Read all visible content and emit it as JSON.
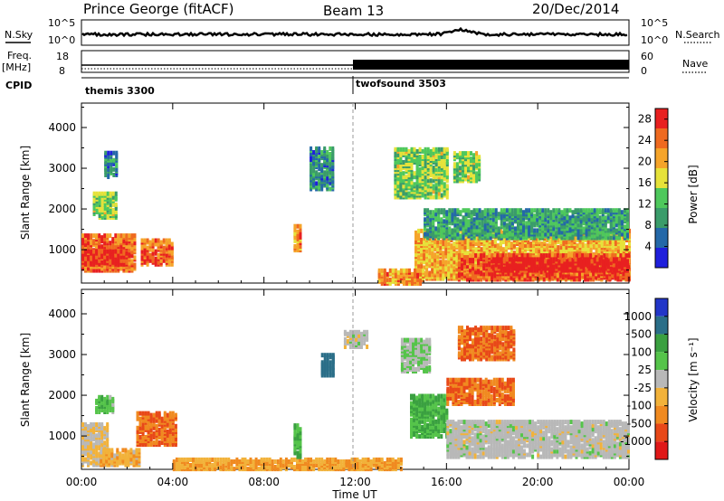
{
  "header": {
    "station": "Prince George (fitACF)",
    "beam": "Beam 13",
    "date": "20/Dec/2014"
  },
  "strips": {
    "nsky_label": "N.Sky",
    "nsky_ticks": [
      "10^5",
      "10^0"
    ],
    "nsearch_label": "N.Search",
    "nsearch_ticks": [
      "10^5",
      "10^0"
    ],
    "freq_label": "Freq.",
    "freq_unit": "[MHz]",
    "freq_ticks": [
      "18",
      "8"
    ],
    "nave_label": "Nave",
    "nave_ticks": [
      "60",
      "0"
    ],
    "cpid_label": "CPID",
    "cpid_segments": [
      {
        "name": "themis 3300",
        "start_hour": 0,
        "end_hour": 12
      },
      {
        "name": "twofsound 3503",
        "start_hour": 12,
        "end_hour": 24
      }
    ]
  },
  "time_axis": {
    "label": "Time UT",
    "ticks": [
      "00:00",
      "04:00",
      "08:00",
      "12:00",
      "16:00",
      "20:00",
      "00:00"
    ],
    "tick_hours": [
      0,
      4,
      8,
      12,
      16,
      20,
      24
    ],
    "range_hours": [
      0,
      24
    ]
  },
  "range_axis": {
    "label": "Slant Range [km]",
    "ticks": [
      "1000",
      "2000",
      "3000",
      "4000"
    ],
    "tick_values": [
      1000,
      2000,
      3000,
      4000
    ],
    "range_km": [
      180,
      4600
    ]
  },
  "colorbars": {
    "power": {
      "label": "Power [dB]",
      "tick_labels": [
        "4",
        "8",
        "12",
        "16",
        "20",
        "24",
        "28"
      ],
      "range": [
        0,
        30
      ],
      "colors": [
        "#1f1fdc",
        "#2468a8",
        "#3a9c6a",
        "#4ec85c",
        "#e6e23a",
        "#f5a42a",
        "#ef6a20",
        "#e82020"
      ]
    },
    "velocity": {
      "label": "Velocity [m s⁻¹]",
      "tick_labels": [
        "1000",
        "500",
        "100",
        "25",
        "-25",
        "-100",
        "-500",
        "-1000"
      ],
      "colors": [
        "#2236c8",
        "#2a6e88",
        "#3aa040",
        "#55c44a",
        "#b8b8b8",
        "#f2b23a",
        "#f08a20",
        "#e84818",
        "#e01818"
      ]
    }
  },
  "chart_data": {
    "type": "heatmap",
    "title": "Prince George (fitACF) Beam 13 20/Dec/2014",
    "xlabel": "Time UT",
    "ylabel": "Slant Range [km]",
    "xlim_hours": [
      0,
      24
    ],
    "ylim_km": [
      180,
      4600
    ],
    "panels": [
      {
        "name": "Power [dB]",
        "regions": [
          {
            "t0": 0.0,
            "t1": 2.4,
            "r0": 500,
            "r1": 1400,
            "value": 24
          },
          {
            "t0": 0.0,
            "t1": 2.0,
            "r0": 650,
            "r1": 1000,
            "value": 28
          },
          {
            "t0": 2.6,
            "t1": 4.0,
            "r0": 650,
            "r1": 1250,
            "value": 24
          },
          {
            "t0": 0.5,
            "t1": 1.5,
            "r0": 1800,
            "r1": 2400,
            "value": 14
          },
          {
            "t0": 1.0,
            "t1": 1.6,
            "r0": 2800,
            "r1": 3400,
            "value": 8
          },
          {
            "t0": 9.3,
            "t1": 9.6,
            "r0": 1000,
            "r1": 1600,
            "value": 22
          },
          {
            "t0": 10.0,
            "t1": 11.0,
            "r0": 2500,
            "r1": 3500,
            "value": 8
          },
          {
            "t0": 14.6,
            "t1": 24.0,
            "r0": 300,
            "r1": 1500,
            "value": 20
          },
          {
            "t0": 16.5,
            "t1": 24.0,
            "r0": 280,
            "r1": 900,
            "value": 26
          },
          {
            "t0": 18.0,
            "t1": 24.0,
            "r0": 500,
            "r1": 800,
            "value": 30
          },
          {
            "t0": 15.0,
            "t1": 24.0,
            "r0": 1300,
            "r1": 2000,
            "value": 10
          },
          {
            "t0": 13.0,
            "t1": 15.0,
            "r0": 180,
            "r1": 500,
            "value": 22
          },
          {
            "t0": 13.7,
            "t1": 16.0,
            "r0": 2300,
            "r1": 3500,
            "value": 14
          },
          {
            "t0": 16.3,
            "t1": 17.5,
            "r0": 2700,
            "r1": 3400,
            "value": 14
          }
        ]
      },
      {
        "name": "Velocity [m s⁻¹]",
        "regions": [
          {
            "t0": 0.0,
            "t1": 1.2,
            "r0": 300,
            "r1": 1300,
            "value": -25
          },
          {
            "t0": 0.8,
            "t1": 2.5,
            "r0": 300,
            "r1": 700,
            "value": -50
          },
          {
            "t0": 2.4,
            "t1": 4.2,
            "r0": 800,
            "r1": 1600,
            "value": -300
          },
          {
            "t0": 0.6,
            "t1": 1.4,
            "r0": 1600,
            "r1": 2000,
            "value": 50
          },
          {
            "t0": 4.0,
            "t1": 14.0,
            "r0": 200,
            "r1": 450,
            "value": -60
          },
          {
            "t0": 9.3,
            "t1": 9.6,
            "r0": 500,
            "r1": 1300,
            "value": 60
          },
          {
            "t0": 10.5,
            "t1": 11.0,
            "r0": 2500,
            "r1": 3000,
            "value": 600
          },
          {
            "t0": 14.4,
            "t1": 16.0,
            "r0": 1000,
            "r1": 2000,
            "value": 60
          },
          {
            "t0": 14.0,
            "t1": 15.2,
            "r0": 2600,
            "r1": 3400,
            "value": 20
          },
          {
            "t0": 16.0,
            "t1": 24.0,
            "r0": 500,
            "r1": 1400,
            "value": 0
          },
          {
            "t0": 16.0,
            "t1": 19.0,
            "r0": 1800,
            "r1": 2400,
            "value": -300
          },
          {
            "t0": 16.5,
            "t1": 19.0,
            "r0": 2900,
            "r1": 3700,
            "value": -300
          },
          {
            "t0": 11.5,
            "t1": 12.5,
            "r0": 3200,
            "r1": 3600,
            "value": 0
          }
        ]
      }
    ]
  }
}
